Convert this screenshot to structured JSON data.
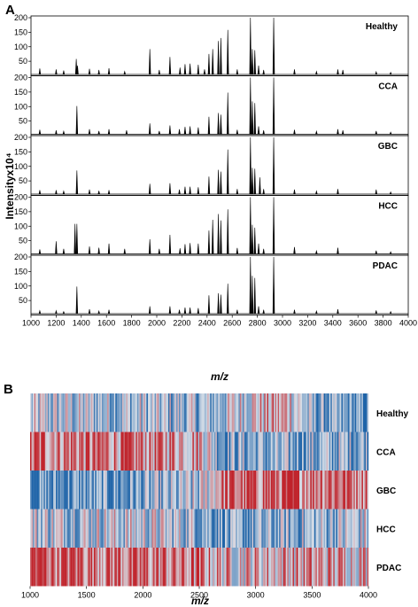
{
  "panels": {
    "a_label": "A",
    "b_label": "B"
  },
  "chart_data": [
    {
      "type": "line",
      "ylabel": "Intensityx10⁴",
      "xlabel": "m/z",
      "xlim": [
        1000,
        4000
      ],
      "ylim": [
        0,
        200
      ],
      "x_ticks": [
        "1000",
        "1200",
        "1400",
        "1600",
        "1800",
        "2000",
        "2200",
        "2400",
        "2600",
        "2800",
        "3000",
        "3200",
        "3400",
        "3600",
        "3800",
        "4000"
      ],
      "y_ticks": [
        "50",
        "100",
        "150",
        "200"
      ],
      "series": [
        {
          "name": "Healthy",
          "peaks": [
            [
              1070,
              25
            ],
            [
              1200,
              22
            ],
            [
              1260,
              18
            ],
            [
              1360,
              58
            ],
            [
              1370,
              35
            ],
            [
              1465,
              24
            ],
            [
              1540,
              20
            ],
            [
              1620,
              26
            ],
            [
              1745,
              15
            ],
            [
              1945,
              92
            ],
            [
              2020,
              20
            ],
            [
              2105,
              65
            ],
            [
              2185,
              28
            ],
            [
              2225,
              40
            ],
            [
              2265,
              42
            ],
            [
              2330,
              38
            ],
            [
              2380,
              22
            ],
            [
              2415,
              75
            ],
            [
              2445,
              92
            ],
            [
              2490,
              120
            ],
            [
              2510,
              130
            ],
            [
              2565,
              158
            ],
            [
              2640,
              22
            ],
            [
              2745,
              200
            ],
            [
              2760,
              92
            ],
            [
              2780,
              88
            ],
            [
              2810,
              35
            ],
            [
              2850,
              20
            ],
            [
              2930,
              200
            ],
            [
              3095,
              22
            ],
            [
              3270,
              15
            ],
            [
              3440,
              22
            ],
            [
              3480,
              20
            ],
            [
              3745,
              14
            ],
            [
              3860,
              12
            ]
          ]
        },
        {
          "name": "CCA",
          "peaks": [
            [
              1070,
              20
            ],
            [
              1200,
              18
            ],
            [
              1260,
              15
            ],
            [
              1365,
              102
            ],
            [
              1465,
              22
            ],
            [
              1540,
              16
            ],
            [
              1620,
              22
            ],
            [
              1760,
              18
            ],
            [
              1945,
              42
            ],
            [
              2020,
              16
            ],
            [
              2105,
              35
            ],
            [
              2180,
              22
            ],
            [
              2225,
              30
            ],
            [
              2265,
              32
            ],
            [
              2330,
              28
            ],
            [
              2415,
              65
            ],
            [
              2490,
              78
            ],
            [
              2510,
              72
            ],
            [
              2565,
              148
            ],
            [
              2640,
              20
            ],
            [
              2745,
              200
            ],
            [
              2760,
              118
            ],
            [
              2780,
              112
            ],
            [
              2810,
              32
            ],
            [
              2850,
              18
            ],
            [
              2930,
              200
            ],
            [
              3095,
              20
            ],
            [
              3270,
              15
            ],
            [
              3440,
              22
            ],
            [
              3480,
              18
            ],
            [
              3745,
              16
            ],
            [
              3860,
              12
            ]
          ]
        },
        {
          "name": "GBC",
          "peaks": [
            [
              1070,
              18
            ],
            [
              1200,
              18
            ],
            [
              1260,
              15
            ],
            [
              1365,
              86
            ],
            [
              1465,
              20
            ],
            [
              1540,
              16
            ],
            [
              1620,
              18
            ],
            [
              1945,
              40
            ],
            [
              2105,
              42
            ],
            [
              2180,
              20
            ],
            [
              2225,
              30
            ],
            [
              2265,
              30
            ],
            [
              2330,
              28
            ],
            [
              2415,
              65
            ],
            [
              2490,
              88
            ],
            [
              2510,
              82
            ],
            [
              2565,
              158
            ],
            [
              2640,
              22
            ],
            [
              2745,
              200
            ],
            [
              2760,
              95
            ],
            [
              2780,
              92
            ],
            [
              2820,
              62
            ],
            [
              2850,
              22
            ],
            [
              2930,
              200
            ],
            [
              3095,
              20
            ],
            [
              3270,
              15
            ],
            [
              3440,
              22
            ],
            [
              3745,
              20
            ],
            [
              3860,
              12
            ]
          ]
        },
        {
          "name": "HCC",
          "peaks": [
            [
              1070,
              20
            ],
            [
              1200,
              48
            ],
            [
              1260,
              22
            ],
            [
              1350,
              108
            ],
            [
              1365,
              108
            ],
            [
              1465,
              30
            ],
            [
              1540,
              26
            ],
            [
              1620,
              40
            ],
            [
              1745,
              22
            ],
            [
              1945,
              55
            ],
            [
              2020,
              22
            ],
            [
              2105,
              70
            ],
            [
              2185,
              24
            ],
            [
              2225,
              38
            ],
            [
              2265,
              42
            ],
            [
              2330,
              40
            ],
            [
              2415,
              85
            ],
            [
              2445,
              122
            ],
            [
              2490,
              142
            ],
            [
              2510,
              120
            ],
            [
              2565,
              158
            ],
            [
              2640,
              25
            ],
            [
              2745,
              200
            ],
            [
              2760,
              105
            ],
            [
              2780,
              95
            ],
            [
              2810,
              40
            ],
            [
              2850,
              22
            ],
            [
              2930,
              200
            ],
            [
              3095,
              28
            ],
            [
              3270,
              15
            ],
            [
              3440,
              26
            ],
            [
              3745,
              16
            ],
            [
              3860,
              12
            ]
          ]
        },
        {
          "name": "PDAC",
          "peaks": [
            [
              1070,
              15
            ],
            [
              1200,
              15
            ],
            [
              1260,
              12
            ],
            [
              1365,
              98
            ],
            [
              1465,
              20
            ],
            [
              1540,
              14
            ],
            [
              1620,
              18
            ],
            [
              1945,
              30
            ],
            [
              2105,
              30
            ],
            [
              2180,
              18
            ],
            [
              2225,
              26
            ],
            [
              2265,
              26
            ],
            [
              2330,
              24
            ],
            [
              2415,
              68
            ],
            [
              2490,
              75
            ],
            [
              2510,
              70
            ],
            [
              2565,
              108
            ],
            [
              2640,
              18
            ],
            [
              2745,
              200
            ],
            [
              2760,
              135
            ],
            [
              2780,
              128
            ],
            [
              2810,
              30
            ],
            [
              2850,
              18
            ],
            [
              2930,
              200
            ],
            [
              3095,
              18
            ],
            [
              3270,
              14
            ],
            [
              3440,
              20
            ],
            [
              3745,
              16
            ],
            [
              3860,
              12
            ]
          ]
        }
      ]
    },
    {
      "type": "heatmap",
      "xlabel": "m/z",
      "xlim": [
        1000,
        4000
      ],
      "x_ticks": [
        "1000",
        "1500",
        "2000",
        "2500",
        "3000",
        "3500",
        "4000"
      ],
      "rows": [
        "Healthy",
        "CCA",
        "GBC",
        "HCC",
        "PDAC"
      ],
      "colors": {
        "high": "#c0232b",
        "low": "#1f64a8",
        "mid": "#d8dfe8"
      },
      "row_trend": {
        "Healthy": [
          [
            1000,
            -0.2
          ],
          [
            2000,
            -0.25
          ],
          [
            2600,
            -0.35
          ],
          [
            3000,
            0.15
          ],
          [
            3300,
            0.3
          ],
          [
            3500,
            -0.5
          ],
          [
            4000,
            -0.8
          ]
        ],
        "CCA": [
          [
            1000,
            0.6
          ],
          [
            2000,
            0.5
          ],
          [
            2500,
            0.4
          ],
          [
            2700,
            -0.4
          ],
          [
            3200,
            -0.5
          ],
          [
            4000,
            -0.35
          ]
        ],
        "GBC": [
          [
            1000,
            -0.75
          ],
          [
            2000,
            -0.55
          ],
          [
            2500,
            -0.3
          ],
          [
            2700,
            0.6
          ],
          [
            3200,
            0.7
          ],
          [
            4000,
            0.75
          ]
        ],
        "HCC": [
          [
            1000,
            -0.1
          ],
          [
            2000,
            -0.1
          ],
          [
            2500,
            -0.25
          ],
          [
            2800,
            -0.65
          ],
          [
            3300,
            -0.4
          ],
          [
            4000,
            -0.15
          ]
        ],
        "PDAC": [
          [
            1000,
            0.85
          ],
          [
            2000,
            0.55
          ],
          [
            2500,
            0.45
          ],
          [
            2800,
            0.15
          ],
          [
            3300,
            0.35
          ],
          [
            4000,
            0.25
          ]
        ]
      }
    }
  ]
}
